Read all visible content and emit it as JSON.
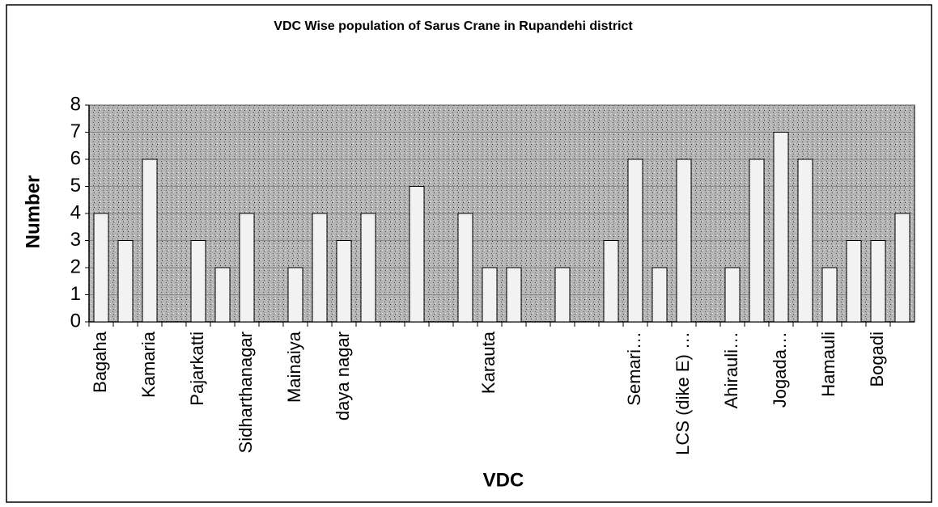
{
  "chart_data": {
    "type": "bar",
    "title": "VDC Wise population of Sarus Crane in Rupandehi district",
    "x_label": "VDC",
    "y_label": "Number",
    "categories": [
      "Bagaha",
      null,
      "Kamaria",
      null,
      "Pajarkatti",
      null,
      "Sidharthanagar",
      null,
      "Mainaiya",
      null,
      "daya nagar",
      null,
      null,
      null,
      null,
      null,
      "Karauta",
      null,
      null,
      null,
      null,
      null,
      "Semari…",
      null,
      "LCS (dike E) …",
      null,
      "Ahirauli…",
      null,
      "Jogada…",
      null,
      "Hamauli",
      null,
      "Bogadi",
      null
    ],
    "values": [
      4,
      3,
      6,
      0,
      3,
      2,
      4,
      0,
      2,
      4,
      3,
      4,
      0,
      5,
      0,
      4,
      2,
      2,
      0,
      2,
      0,
      3,
      6,
      2,
      6,
      0,
      2,
      6,
      7,
      6,
      2,
      3,
      3,
      4
    ],
    "color": "#f2f2f2",
    "background": "#b5b5b5",
    "ylim": [
      0,
      8
    ],
    "yticks": [
      0,
      1,
      2,
      3,
      4,
      5,
      6,
      7,
      8
    ],
    "grid": true
  }
}
